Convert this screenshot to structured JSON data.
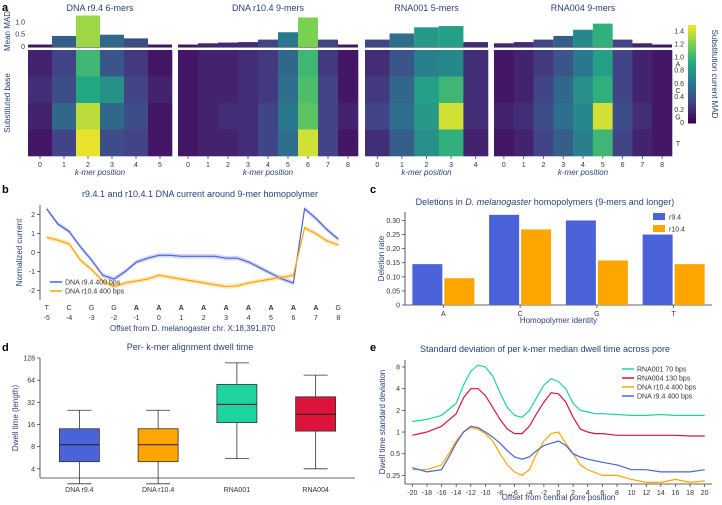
{
  "colors": {
    "title": "#2a3f7a",
    "r94": "#4a63d8",
    "r104": "#ffa500",
    "rna001": "#1dd3a0",
    "rna004": "#dc143c",
    "viridis": [
      "#440154",
      "#414487",
      "#2a788e",
      "#22a884",
      "#7ad151",
      "#fde725"
    ],
    "green_base": "#2e8b22"
  },
  "chart_data": [
    {
      "id": "a",
      "type": "heatmap",
      "panel_letter": "a",
      "ylabel_top": "Mean MAD",
      "ylabel_bottom": "Substituted base",
      "xlabel": "k-mer position",
      "right_axis_label": "Substitution current MAD",
      "colorbar_ticks": [
        "0",
        "0.2",
        "0.4",
        "0.6",
        "0.8",
        "1.0",
        "1.2",
        "1.4"
      ],
      "colorbar_range": [
        0,
        1.5
      ],
      "top_ticks": [
        "0",
        "0.5",
        "1.0"
      ],
      "bar_ylim": [
        0,
        1.3
      ],
      "bases": [
        "A",
        "C",
        "G",
        "T"
      ],
      "subpanels": [
        {
          "title": "DNA r9.4 6-mers",
          "positions": [
            "0",
            "1",
            "2",
            "3",
            "4",
            "5"
          ],
          "bars": [
            0.1,
            0.45,
            1.28,
            0.5,
            0.35,
            0.1
          ],
          "matrix": [
            [
              0.15,
              0.3,
              1.0,
              0.4,
              0.25,
              0.1
            ],
            [
              0.2,
              0.35,
              0.9,
              0.75,
              0.3,
              0.15
            ],
            [
              0.15,
              0.5,
              1.35,
              0.5,
              0.35,
              0.1
            ],
            [
              0.1,
              0.3,
              1.45,
              0.35,
              0.3,
              0.1
            ]
          ]
        },
        {
          "title": "DNA r10.4 9-mers",
          "positions": [
            "0",
            "1",
            "2",
            "3",
            "4",
            "5",
            "6",
            "7",
            "8"
          ],
          "bars": [
            0.1,
            0.15,
            0.18,
            0.2,
            0.3,
            0.6,
            1.2,
            0.3,
            0.1
          ],
          "matrix": [
            [
              0.1,
              0.15,
              0.15,
              0.2,
              0.25,
              0.5,
              1.0,
              0.25,
              0.1
            ],
            [
              0.1,
              0.15,
              0.15,
              0.2,
              0.25,
              0.55,
              1.05,
              0.3,
              0.1
            ],
            [
              0.1,
              0.15,
              0.2,
              0.2,
              0.3,
              0.6,
              1.1,
              0.3,
              0.15
            ],
            [
              0.1,
              0.15,
              0.15,
              0.2,
              0.3,
              0.55,
              1.4,
              0.3,
              0.1
            ]
          ]
        },
        {
          "title": "RNA001 5-mers",
          "positions": [
            "0",
            "1",
            "2",
            "3",
            "4"
          ],
          "bars": [
            0.3,
            0.55,
            0.8,
            0.85,
            0.2
          ],
          "matrix": [
            [
              0.2,
              0.4,
              0.65,
              0.7,
              0.2
            ],
            [
              0.25,
              0.5,
              0.85,
              1.0,
              0.2
            ],
            [
              0.3,
              0.55,
              0.8,
              1.4,
              0.2
            ],
            [
              0.2,
              0.45,
              0.75,
              0.95,
              0.15
            ]
          ]
        },
        {
          "title": "RNA004 9-mers",
          "positions": [
            "0",
            "1",
            "2",
            "3",
            "4",
            "5",
            "6",
            "7",
            "8"
          ],
          "bars": [
            0.15,
            0.2,
            0.3,
            0.45,
            0.7,
            0.95,
            0.3,
            0.15,
            0.1
          ],
          "matrix": [
            [
              0.1,
              0.15,
              0.25,
              0.4,
              0.6,
              0.85,
              0.3,
              0.15,
              0.1
            ],
            [
              0.1,
              0.15,
              0.3,
              0.5,
              0.75,
              0.95,
              0.3,
              0.15,
              0.1
            ],
            [
              0.15,
              0.2,
              0.35,
              0.55,
              0.7,
              1.4,
              0.35,
              0.2,
              0.1
            ],
            [
              0.1,
              0.15,
              0.3,
              0.45,
              0.65,
              1.0,
              0.3,
              0.15,
              0.1
            ]
          ]
        }
      ]
    },
    {
      "id": "b",
      "type": "line",
      "panel_letter": "b",
      "title": "r9.4.1 and r10.4.1 DNA current around 9-mer homopolymer",
      "ylabel": "Normalized current",
      "xlabel": "Offset from D. melanogaster chr. X:18,391,870",
      "ylim": [
        -2.5,
        2.5
      ],
      "yticks": [
        "2",
        "1",
        "0",
        "-1",
        "-2"
      ],
      "x": [
        -5,
        -4,
        -3,
        -2,
        -1,
        0,
        1,
        2,
        3,
        4,
        5,
        6,
        7,
        8
      ],
      "xtick_labels": [
        "-5",
        "-4",
        "-3",
        "-2",
        "-1",
        "0",
        "1",
        "2",
        "3",
        "4",
        "5",
        "6",
        "7",
        "8"
      ],
      "bases": [
        "T",
        "C",
        "G",
        "G",
        "A",
        "A",
        "A",
        "A",
        "A",
        "A",
        "A",
        "A",
        "A",
        "G",
        "T",
        "C"
      ],
      "base_offsets": [
        -5,
        -4,
        -3,
        -2,
        -1,
        -0.5,
        0,
        0.5,
        1,
        2,
        3,
        4,
        5,
        6,
        7,
        8
      ],
      "base_x": [
        -5,
        -4,
        -3,
        -2,
        -1.5,
        -1,
        -0.5,
        0,
        0.5,
        1,
        1.5,
        2,
        2.5,
        3,
        3.5,
        4
      ],
      "series": [
        {
          "name": "DNA r9.4 400 bps",
          "color": "#4a63d8",
          "x": [
            -5,
            -4.5,
            -4,
            -3.5,
            -3,
            -2.5,
            -2,
            -1.5,
            -1,
            -0.5,
            0,
            0.5,
            1,
            1.5,
            2,
            2.5,
            3,
            3.5,
            4,
            4.5,
            5,
            5.5,
            6,
            6.5,
            7,
            7.5,
            8
          ],
          "y": [
            2.3,
            1.5,
            1.1,
            0.3,
            -0.4,
            -1.2,
            -1.4,
            -1.0,
            -0.5,
            -0.3,
            -0.15,
            -0.15,
            -0.2,
            -0.2,
            -0.2,
            -0.2,
            -0.3,
            -0.3,
            -0.5,
            -0.8,
            -1.1,
            -1.4,
            -1.6,
            2.3,
            1.8,
            1.2,
            0.7
          ]
        },
        {
          "name": "DNA r10.4 400 bps",
          "color": "#ffa500",
          "x": [
            -5,
            -4.5,
            -4,
            -3.5,
            -3,
            -2.5,
            -2,
            -1.5,
            -1,
            -0.5,
            0,
            0.5,
            1,
            1.5,
            2,
            2.5,
            3,
            3.5,
            4,
            4.5,
            5,
            5.5,
            6,
            6.5,
            7,
            7.5,
            8
          ],
          "y": [
            0.8,
            0.65,
            0.45,
            -0.4,
            -0.9,
            -1.5,
            -1.8,
            -1.6,
            -1.5,
            -1.4,
            -1.2,
            -1.3,
            -1.4,
            -1.5,
            -1.6,
            -1.7,
            -1.8,
            -1.75,
            -1.6,
            -1.5,
            -1.4,
            -1.3,
            -1.2,
            1.3,
            1.0,
            0.6,
            0.4
          ]
        }
      ],
      "legend": [
        "DNA r9.4 400 bps",
        "DNA r10.4 400 bps"
      ]
    },
    {
      "id": "c",
      "type": "bar",
      "panel_letter": "c",
      "title_pre": "Deletions in ",
      "title_italic": "D. melanogaster",
      "title_post": " homopolymers (9-mers and longer)",
      "ylabel": "Deletion rate",
      "xlabel": "Homopolymer identity",
      "categories": [
        "A",
        "C",
        "G",
        "T"
      ],
      "ylim": [
        0,
        0.33
      ],
      "yticks": [
        "0",
        "0.05",
        "0.10",
        "0.15",
        "0.20",
        "0.25",
        "0.30"
      ],
      "series": [
        {
          "name": "r9.4",
          "color": "#4a63d8",
          "values": [
            0.145,
            0.32,
            0.3,
            0.25
          ]
        },
        {
          "name": "r10.4",
          "color": "#ffa500",
          "values": [
            0.095,
            0.268,
            0.158,
            0.145
          ]
        }
      ]
    },
    {
      "id": "d",
      "type": "box",
      "panel_letter": "d",
      "title": "Per- k-mer alignment dwell time",
      "ylabel": "Dwell time (length)",
      "yscale": "log2",
      "yticks": [
        "4",
        "8",
        "16",
        "32",
        "64",
        "128"
      ],
      "ytick_values": [
        4,
        8,
        16,
        32,
        64,
        128
      ],
      "ylim": [
        3,
        128
      ],
      "categories": [
        "DNA r9.4",
        "DNA r10.4",
        "RNA001",
        "RNA004"
      ],
      "boxes": [
        {
          "color": "#4a63d8",
          "whislo": 2.5,
          "q1": 5,
          "med": 8.5,
          "q3": 14,
          "whishi": 25
        },
        {
          "color": "#ffa500",
          "whislo": 2.5,
          "q1": 5,
          "med": 8.5,
          "q3": 14,
          "whishi": 25
        },
        {
          "color": "#1dd3a0",
          "whislo": 5.5,
          "q1": 17,
          "med": 30,
          "q3": 56,
          "whishi": 110
        },
        {
          "color": "#dc143c",
          "whislo": 4,
          "q1": 13,
          "med": 22,
          "q3": 38,
          "whishi": 75
        }
      ]
    },
    {
      "id": "e",
      "type": "line",
      "panel_letter": "e",
      "title": "Standard deviation of per k-mer median dwell time across pore",
      "ylabel": "Dwell time standard deviation",
      "xlabel": "Offset from central pore position",
      "yscale": "log2",
      "yticks": [
        "0.25",
        "0.5",
        "1",
        "2",
        "4",
        "8"
      ],
      "ytick_values": [
        0.25,
        0.5,
        1,
        2,
        4,
        8
      ],
      "ylim": [
        0.19,
        10
      ],
      "xticks": [
        "-20",
        "-18",
        "-16",
        "-14",
        "-12",
        "-10",
        "-8",
        "-6",
        "-4",
        "-2",
        "0",
        "2",
        "4",
        "6",
        "8",
        "10",
        "12",
        "14",
        "16",
        "18",
        "20"
      ],
      "xlim": [
        -20,
        20
      ],
      "series": [
        {
          "name": "RNA001 70 bps",
          "color": "#1dd3a0",
          "x": [
            -20,
            -18,
            -16,
            -14,
            -13,
            -12,
            -11,
            -10,
            -9,
            -8,
            -7,
            -6,
            -5,
            -4,
            -3,
            -2,
            -1,
            0,
            1,
            2,
            3,
            4,
            5,
            6,
            8,
            10,
            12,
            14,
            16,
            18,
            20
          ],
          "y": [
            1.4,
            1.5,
            1.7,
            2.5,
            4.5,
            7.0,
            8.5,
            8.0,
            6.0,
            3.5,
            2.2,
            1.7,
            1.6,
            2.0,
            3.0,
            4.5,
            5.5,
            5.0,
            4.0,
            2.5,
            2.0,
            1.9,
            1.8,
            1.8,
            1.75,
            1.7,
            1.7,
            1.75,
            1.7,
            1.7,
            1.7
          ]
        },
        {
          "name": "RNA004 130 bps",
          "color": "#dc143c",
          "x": [
            -20,
            -18,
            -16,
            -14,
            -13,
            -12,
            -11,
            -10,
            -9,
            -8,
            -7,
            -6,
            -5,
            -4,
            -3,
            -2,
            -1,
            0,
            1,
            2,
            3,
            4,
            5,
            6,
            8,
            10,
            12,
            14,
            16,
            18,
            20
          ],
          "y": [
            0.9,
            1.0,
            1.2,
            1.8,
            3.0,
            4.0,
            4.0,
            3.2,
            2.2,
            1.5,
            1.1,
            0.95,
            0.95,
            1.2,
            1.8,
            2.6,
            3.5,
            3.4,
            2.6,
            1.6,
            1.1,
            1.0,
            0.95,
            0.95,
            0.9,
            0.9,
            0.9,
            0.9,
            0.9,
            0.88,
            0.88
          ]
        },
        {
          "name": "DNA r10.4 400 bps",
          "color": "#ffa500",
          "x": [
            -20,
            -18,
            -16,
            -15,
            -14,
            -13,
            -12,
            -11,
            -10,
            -9,
            -8,
            -7,
            -6,
            -5,
            -4,
            -3,
            -2,
            -1,
            0,
            1,
            2,
            3,
            4,
            6,
            8,
            10,
            12,
            14,
            16,
            18,
            20
          ],
          "y": [
            0.3,
            0.3,
            0.35,
            0.5,
            0.75,
            1.0,
            1.15,
            1.1,
            0.95,
            0.75,
            0.5,
            0.35,
            0.28,
            0.25,
            0.3,
            0.5,
            0.75,
            0.95,
            1.0,
            0.7,
            0.5,
            0.35,
            0.3,
            0.25,
            0.25,
            0.22,
            0.2,
            0.2,
            0.22,
            0.2,
            0.21
          ]
        },
        {
          "name": "DNA r9.4 400 bps",
          "color": "#4a63d8",
          "x": [
            -20,
            -18,
            -16,
            -15,
            -14,
            -13,
            -12,
            -11,
            -10,
            -9,
            -8,
            -7,
            -6,
            -5,
            -4,
            -3,
            -2,
            -1,
            0,
            1,
            2,
            3,
            4,
            6,
            8,
            10,
            12,
            14,
            16,
            18,
            20
          ],
          "y": [
            0.32,
            0.28,
            0.3,
            0.45,
            0.7,
            1.0,
            1.2,
            1.15,
            1.0,
            0.85,
            0.7,
            0.55,
            0.45,
            0.42,
            0.45,
            0.55,
            0.65,
            0.7,
            0.75,
            0.65,
            0.5,
            0.45,
            0.42,
            0.38,
            0.35,
            0.3,
            0.3,
            0.28,
            0.28,
            0.28,
            0.3
          ]
        }
      ],
      "legend": [
        "RNA001 70 bps",
        "RNA004 130 bps",
        "DNA r10.4 400 bps",
        "DNA r9.4 400 bps"
      ]
    }
  ]
}
